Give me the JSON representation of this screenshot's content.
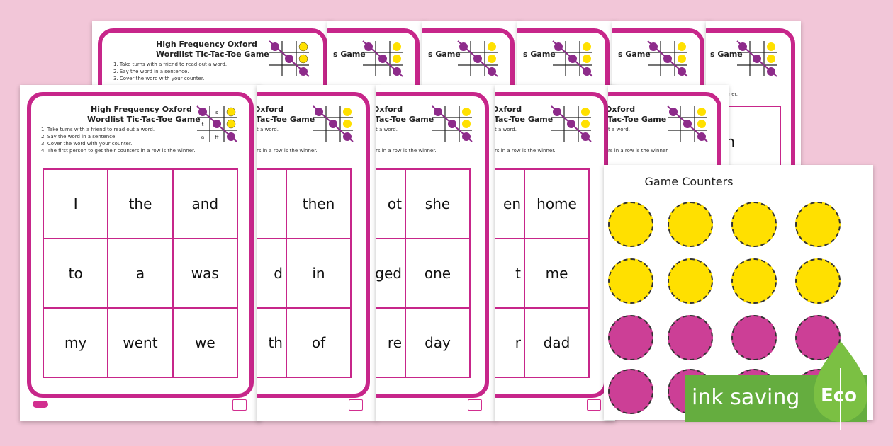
{
  "worksheet": {
    "title_line1": "High Frequency Oxford",
    "title_line2": "Wordlist Tic-Tac-Toe Game",
    "instructions": [
      "1. Take turns with a friend to read out a word.",
      "2. Say the word in a sentence.",
      "3. Cover the word with your counter.",
      "4. The first person to get their counters in a row is the winner."
    ],
    "mini_letters": [
      "s",
      "t",
      "a",
      "ff"
    ]
  },
  "partial_titles": {
    "oxford": "Oxford",
    "tac_toe": "-Tac-Toe Game",
    "a_word": "t a word.",
    "in_row": "rs in a row is the winner.",
    "game": "s Game",
    "winner": "the winner."
  },
  "sheets": [
    {
      "words": [
        "I",
        "the",
        "and",
        "to",
        "a",
        "was",
        "my",
        "went",
        "we"
      ]
    },
    {
      "words": [
        "",
        "then",
        "",
        "d",
        "in",
        "",
        "th",
        "of",
        ""
      ]
    },
    {
      "words": [
        "ot",
        "she",
        "ged",
        "one",
        "re",
        "day"
      ]
    },
    {
      "words": [
        "en",
        "home",
        "t",
        "me",
        "r",
        "dad"
      ]
    }
  ],
  "back_sheet_word": "an",
  "counters": {
    "title": "Game Counters",
    "yellow": "#ffe000",
    "pink": "#cc3f96"
  },
  "badge": {
    "label": "ink saving",
    "eco": "Eco",
    "color": "#65ad3f"
  },
  "colors": {
    "accent": "#c7268a",
    "background": "#f2c6d8"
  }
}
